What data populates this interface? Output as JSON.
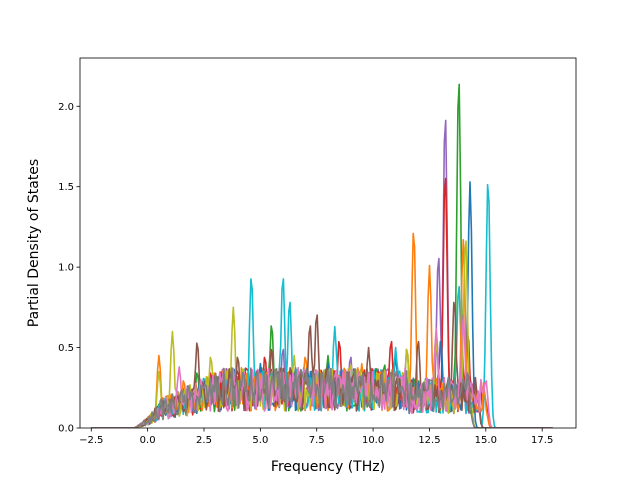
{
  "chart_data": {
    "type": "line",
    "title": "",
    "xlabel": "Frequency (THz)",
    "ylabel": "Partial Density of States",
    "xlim": [
      -3.0,
      19.0
    ],
    "ylim": [
      0.0,
      2.3
    ],
    "xticks": [
      -2.5,
      0.0,
      2.5,
      5.0,
      7.5,
      10.0,
      12.5,
      15.0,
      17.5
    ],
    "xtick_labels": [
      "−2.5",
      "0.0",
      "2.5",
      "5.0",
      "7.5",
      "10.0",
      "12.5",
      "15.0",
      "17.5"
    ],
    "yticks": [
      0.0,
      0.5,
      1.0,
      1.5,
      2.0
    ],
    "ytick_labels": [
      "0.0",
      "0.5",
      "1.0",
      "1.5",
      "2.0"
    ],
    "grid": false,
    "legend": "none",
    "colors": [
      "#1f77b4",
      "#ff7f0e",
      "#2ca02c",
      "#d62728",
      "#9467bd",
      "#8c564b",
      "#e377c2",
      "#7f7f7f",
      "#bcbd22",
      "#17becf"
    ],
    "series": [
      {
        "color": "#2ca02c",
        "peaks": [
          [
            0.6,
            0.12
          ],
          [
            2.2,
            0.35
          ],
          [
            5.5,
            0.65
          ],
          [
            8.0,
            0.45
          ],
          [
            10.5,
            0.4
          ],
          [
            12.8,
            0.6
          ],
          [
            13.8,
            2.19
          ]
        ]
      },
      {
        "color": "#9467bd",
        "peaks": [
          [
            0.7,
            0.08
          ],
          [
            3.0,
            0.3
          ],
          [
            6.0,
            0.5
          ],
          [
            9.0,
            0.45
          ],
          [
            11.5,
            0.5
          ],
          [
            12.9,
            1.08
          ],
          [
            13.2,
            1.96
          ]
        ]
      },
      {
        "color": "#d62728",
        "peaks": [
          [
            0.5,
            0.1
          ],
          [
            2.8,
            0.35
          ],
          [
            5.2,
            0.45
          ],
          [
            8.5,
            0.55
          ],
          [
            10.8,
            0.55
          ],
          [
            13.2,
            1.59
          ],
          [
            14.2,
            0.6
          ]
        ]
      },
      {
        "color": "#1f77b4",
        "peaks": [
          [
            0.4,
            0.06
          ],
          [
            2.5,
            0.25
          ],
          [
            5.0,
            0.4
          ],
          [
            8.0,
            0.4
          ],
          [
            11.0,
            0.45
          ],
          [
            13.0,
            0.55
          ],
          [
            14.3,
            1.53
          ]
        ]
      },
      {
        "color": "#17becf",
        "peaks": [
          [
            0.3,
            0.05
          ],
          [
            2.0,
            0.2
          ],
          [
            4.6,
            0.95
          ],
          [
            6.0,
            0.95
          ],
          [
            6.3,
            0.8
          ],
          [
            8.3,
            0.63
          ],
          [
            11.0,
            0.5
          ],
          [
            13.8,
            0.9
          ],
          [
            15.1,
            1.55
          ]
        ]
      },
      {
        "color": "#ff7f0e",
        "peaks": [
          [
            0.5,
            0.45
          ],
          [
            1.6,
            0.3
          ],
          [
            3.5,
            0.35
          ],
          [
            5.5,
            0.5
          ],
          [
            7.0,
            0.45
          ],
          [
            9.5,
            0.4
          ],
          [
            11.8,
            1.24
          ],
          [
            12.5,
            1.01
          ],
          [
            14.0,
            1.17
          ]
        ]
      },
      {
        "color": "#bcbd22",
        "peaks": [
          [
            0.5,
            0.35
          ],
          [
            1.1,
            0.6
          ],
          [
            2.8,
            0.45
          ],
          [
            3.8,
            0.75
          ],
          [
            6.5,
            0.45
          ],
          [
            9.0,
            0.4
          ],
          [
            11.5,
            0.5
          ],
          [
            12.8,
            0.55
          ],
          [
            14.1,
            1.19
          ]
        ]
      },
      {
        "color": "#8c564b",
        "peaks": [
          [
            0.8,
            0.1
          ],
          [
            2.2,
            0.54
          ],
          [
            4.0,
            0.45
          ],
          [
            5.5,
            0.5
          ],
          [
            7.2,
            0.65
          ],
          [
            7.5,
            0.72
          ],
          [
            9.8,
            0.5
          ],
          [
            12.0,
            0.55
          ],
          [
            13.6,
            0.8
          ]
        ]
      },
      {
        "color": "#e377c2",
        "peaks": [
          [
            1.4,
            0.38
          ],
          [
            3.2,
            0.3
          ],
          [
            6.0,
            0.35
          ],
          [
            8.5,
            0.3
          ],
          [
            11.0,
            0.35
          ],
          [
            12.8,
            0.62
          ],
          [
            14.0,
            0.7
          ],
          [
            15.0,
            0.3
          ]
        ]
      },
      {
        "color": "#7f7f7f",
        "peaks": [
          [
            1.0,
            0.1
          ],
          [
            3.0,
            0.25
          ],
          [
            5.5,
            0.3
          ],
          [
            8.0,
            0.3
          ],
          [
            10.5,
            0.25
          ],
          [
            12.5,
            0.3
          ],
          [
            14.2,
            0.35
          ]
        ]
      }
    ]
  }
}
